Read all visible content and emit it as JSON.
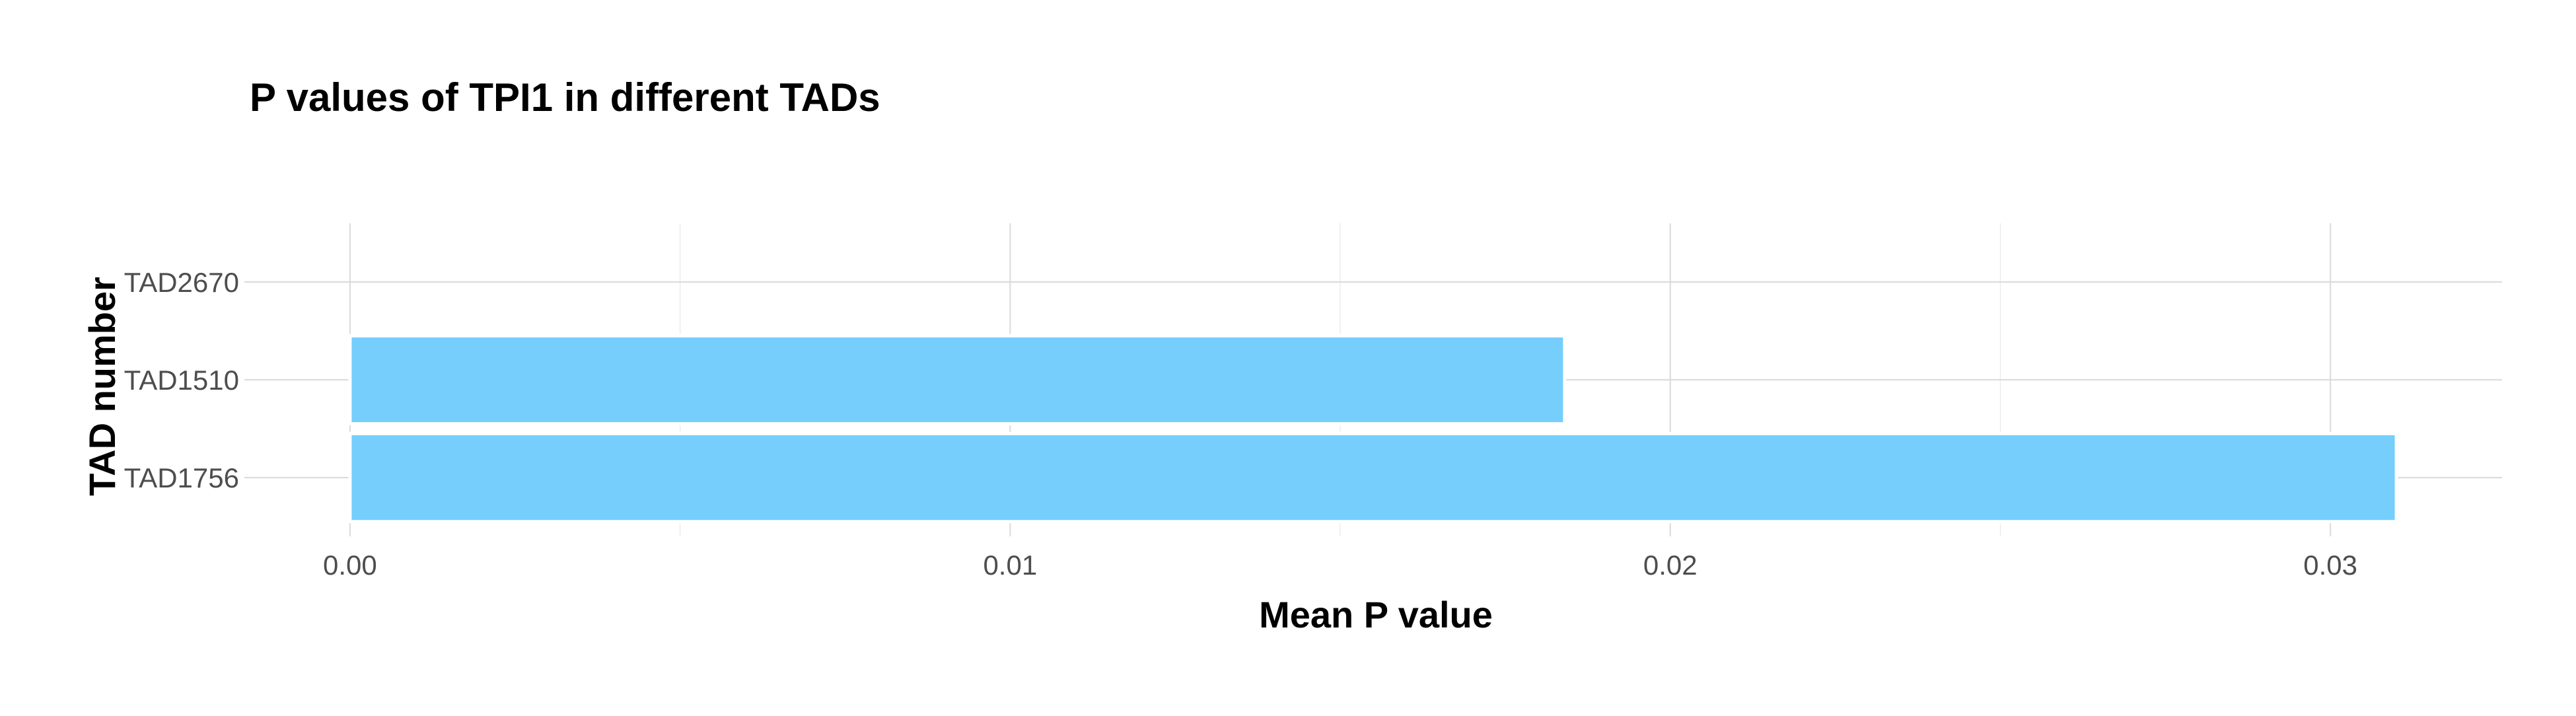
{
  "chart_data": {
    "type": "bar",
    "orientation": "horizontal",
    "title": "P values of TPI1 in different TADs",
    "xlabel": "Mean P value",
    "ylabel": "TAD number",
    "categories": [
      "TAD1756",
      "TAD1510",
      "TAD2670"
    ],
    "values": [
      0.031,
      0.0184,
      0
    ],
    "xlim": [
      -0.0016,
      0.0326
    ],
    "xticks": [
      0.0,
      0.01,
      0.02,
      0.03
    ],
    "xtick_labels": [
      "0.00",
      "0.01",
      "0.02",
      "0.03"
    ],
    "grid": true,
    "legend": "none",
    "bar_color": "#75cefc"
  }
}
